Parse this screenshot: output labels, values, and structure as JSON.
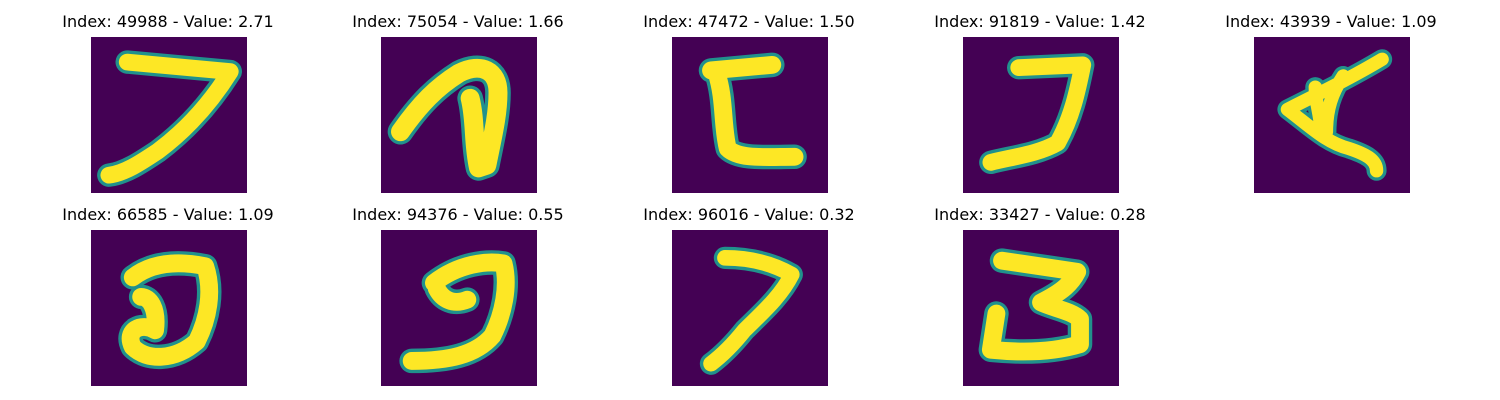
{
  "colors": {
    "background": "#440154",
    "foreground": "#fde725",
    "edge": "#21918c"
  },
  "panels": [
    {
      "title": "Index: 49988 - Value: 2.71"
    },
    {
      "title": "Index: 75054 - Value: 1.66"
    },
    {
      "title": "Index: 47472 - Value: 1.50"
    },
    {
      "title": "Index: 91819 - Value: 1.42"
    },
    {
      "title": "Index: 43939 - Value: 1.09"
    },
    {
      "title": "Index: 66585 - Value: 1.09"
    },
    {
      "title": "Index: 94376 - Value: 0.55"
    },
    {
      "title": "Index: 96016 - Value: 0.32"
    },
    {
      "title": "Index: 33427 - Value: 0.28"
    }
  ]
}
